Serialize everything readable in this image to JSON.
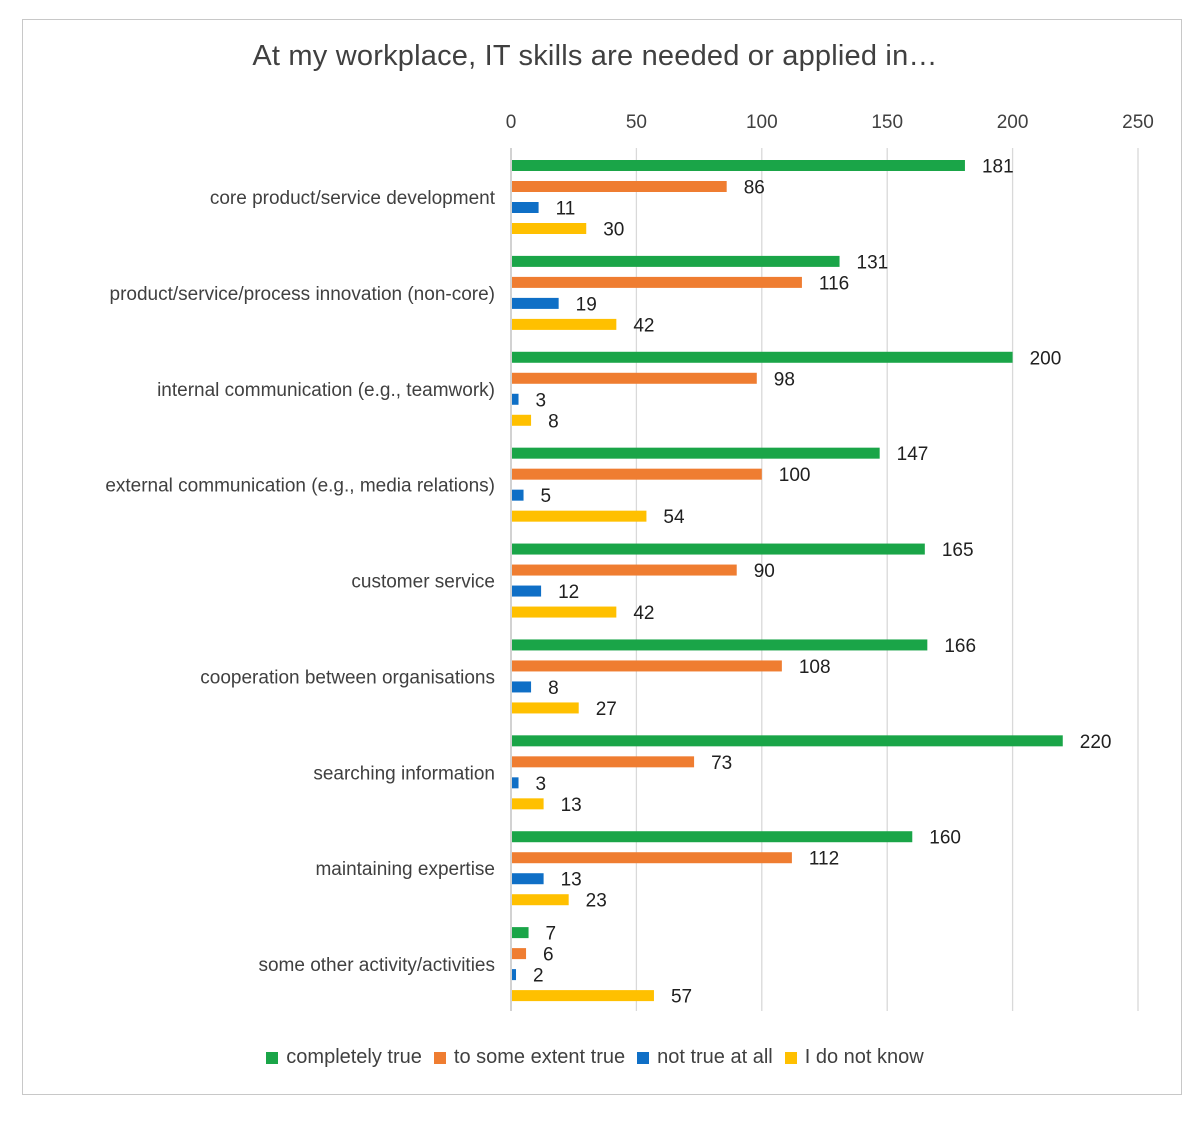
{
  "chart_data": {
    "type": "bar",
    "orientation": "horizontal",
    "title": "At my workplace, IT skills are needed or applied in…",
    "xlim": [
      0,
      250
    ],
    "xticks": [
      0,
      50,
      100,
      150,
      200,
      250
    ],
    "categories": [
      "core product/service development",
      "product/service/process innovation (non-core)",
      "internal communication (e.g., teamwork)",
      "external communication (e.g., media relations)",
      "customer service",
      "cooperation between organisations",
      "searching information",
      "maintaining expertise",
      "some other activity/activities"
    ],
    "series": [
      {
        "name": "completely true",
        "color": "#1aa548",
        "values": [
          181,
          131,
          200,
          147,
          165,
          166,
          220,
          160,
          7
        ]
      },
      {
        "name": "to some extent true",
        "color": "#ef7d31",
        "values": [
          86,
          116,
          98,
          100,
          90,
          108,
          73,
          112,
          6
        ]
      },
      {
        "name": "not true at all",
        "color": "#0f6fc6",
        "values": [
          11,
          19,
          3,
          5,
          12,
          8,
          3,
          13,
          2
        ]
      },
      {
        "name": "I do not know",
        "color": "#ffc000",
        "values": [
          30,
          42,
          8,
          54,
          42,
          27,
          13,
          23,
          57
        ]
      }
    ],
    "legend_position": "bottom",
    "grid": true
  }
}
